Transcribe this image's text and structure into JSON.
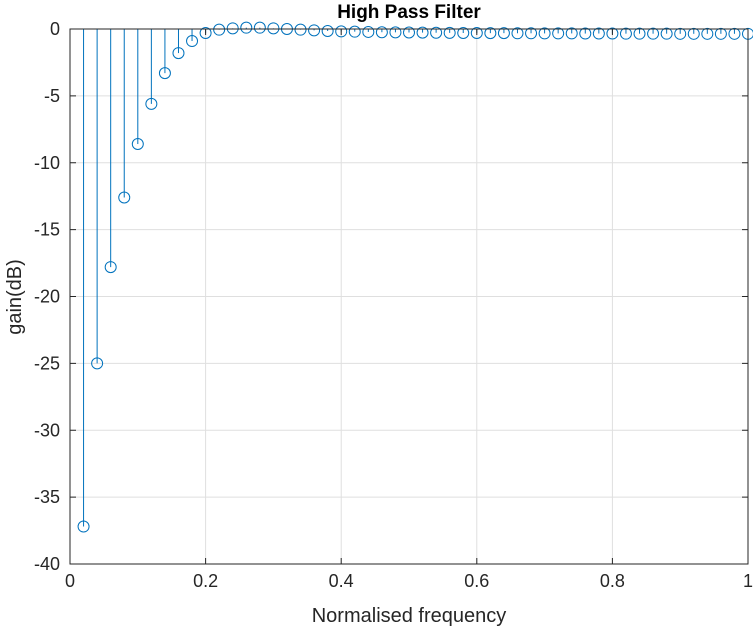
{
  "chart_data": {
    "type": "stem",
    "title": "High Pass Filter",
    "xlabel": "Normalised frequency",
    "ylabel": "gain(dB)",
    "xlim": [
      0,
      1
    ],
    "ylim": [
      -40,
      0
    ],
    "xticks": [
      0,
      0.2,
      0.4,
      0.6,
      0.8,
      1
    ],
    "xtick_labels": [
      "0",
      "0.2",
      "0.4",
      "0.6",
      "0.8",
      "1"
    ],
    "yticks": [
      -40,
      -35,
      -30,
      -25,
      -20,
      -15,
      -10,
      -5,
      0
    ],
    "ytick_labels": [
      "-40",
      "-35",
      "-30",
      "-25",
      "-20",
      "-15",
      "-10",
      "-5",
      "0"
    ],
    "grid": true,
    "series": [
      {
        "color": "#0072BD",
        "marker": "circle",
        "baseline": 0,
        "x": [
          0.02,
          0.04,
          0.06,
          0.08,
          0.1,
          0.12,
          0.14,
          0.16,
          0.18,
          0.2,
          0.22,
          0.24,
          0.26,
          0.28,
          0.3,
          0.32,
          0.34,
          0.36,
          0.38,
          0.4,
          0.42,
          0.44,
          0.46,
          0.48,
          0.5,
          0.52,
          0.54,
          0.56,
          0.58,
          0.6,
          0.62,
          0.64,
          0.66,
          0.68,
          0.7,
          0.72,
          0.74,
          0.76,
          0.78,
          0.8,
          0.82,
          0.84,
          0.86,
          0.88,
          0.9,
          0.92,
          0.94,
          0.96,
          0.98,
          1.0
        ],
        "y": [
          -37.2,
          -25.0,
          -17.8,
          -12.6,
          -8.6,
          -5.6,
          -3.3,
          -1.8,
          -0.9,
          -0.3,
          -0.05,
          0.05,
          0.1,
          0.1,
          0.05,
          0.0,
          -0.05,
          -0.1,
          -0.15,
          -0.18,
          -0.2,
          -0.22,
          -0.24,
          -0.25,
          -0.26,
          -0.27,
          -0.28,
          -0.29,
          -0.3,
          -0.3,
          -0.31,
          -0.31,
          -0.32,
          -0.32,
          -0.33,
          -0.33,
          -0.33,
          -0.34,
          -0.34,
          -0.34,
          -0.35,
          -0.35,
          -0.35,
          -0.35,
          -0.36,
          -0.36,
          -0.36,
          -0.36,
          -0.36,
          -0.36
        ]
      }
    ]
  }
}
